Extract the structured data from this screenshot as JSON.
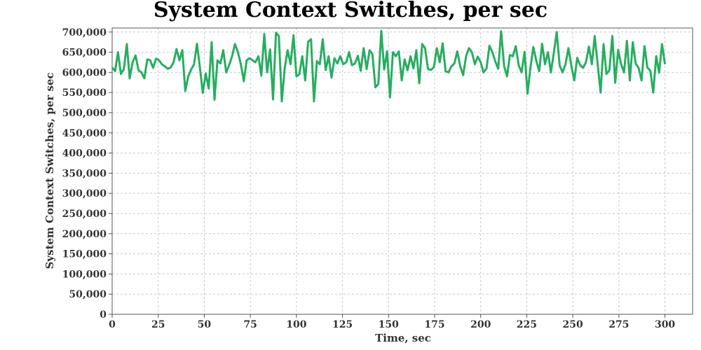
{
  "chart_data": {
    "type": "line",
    "title": "System Context Switches, per sec",
    "xlabel": "Time, sec",
    "ylabel": "System Context Switches, per sec",
    "xlim": [
      0,
      315
    ],
    "ylim": [
      0,
      710000
    ],
    "xticks": [
      0,
      25,
      50,
      75,
      100,
      125,
      150,
      175,
      200,
      225,
      250,
      275,
      300
    ],
    "yticks": [
      0,
      50000,
      100000,
      150000,
      200000,
      250000,
      300000,
      350000,
      400000,
      450000,
      500000,
      550000,
      600000,
      650000,
      700000
    ],
    "xtick_labels": [
      "0",
      "25",
      "50",
      "75",
      "100",
      "125",
      "150",
      "175",
      "200",
      "225",
      "250",
      "275",
      "300"
    ],
    "ytick_labels": [
      "0",
      "50,000",
      "100,000",
      "150,000",
      "200,000",
      "250,000",
      "300,000",
      "350,000",
      "400,000",
      "450,000",
      "500,000",
      "550,000",
      "600,000",
      "650,000",
      "700,000"
    ],
    "grid": true,
    "color": "#27ae60",
    "series": [
      {
        "values": [
          612000,
          603000,
          650000,
          596000,
          608000,
          670000,
          585000,
          625000,
          642000,
          605000,
          600000,
          585000,
          632000,
          630000,
          611000,
          634000,
          630000,
          620000,
          615000,
          609000,
          612000,
          625000,
          658000,
          630000,
          655000,
          554000,
          590000,
          607000,
          620000,
          671000,
          612000,
          549000,
          597000,
          560000,
          675000,
          532000,
          630000,
          622000,
          655000,
          600000,
          618000,
          640000,
          670000,
          650000,
          620000,
          578000,
          630000,
          635000,
          630000,
          625000,
          640000,
          592000,
          695000,
          600000,
          657000,
          533000,
          698000,
          690000,
          528000,
          611000,
          655000,
          620000,
          692000,
          590000,
          595000,
          640000,
          580000,
          676000,
          682000,
          528000,
          628000,
          620000,
          682000,
          606000,
          640000,
          587000,
          635000,
          622000,
          640000,
          620000,
          625000,
          650000,
          618000,
          622000,
          641000,
          604000,
          660000,
          608000,
          655000,
          645000,
          563000,
          571000,
          703000,
          607000,
          652000,
          538000,
          650000,
          640000,
          652000,
          580000,
          632000,
          605000,
          640000,
          610000,
          655000,
          573000,
          670000,
          660000,
          608000,
          606000,
          613000,
          660000,
          625000,
          672000,
          603000,
          600000,
          615000,
          622000,
          652000,
          615000,
          593000,
          640000,
          660000,
          650000,
          620000,
          639000,
          625000,
          600000,
          610000,
          666000,
          650000,
          627000,
          609000,
          702000,
          616000,
          590000,
          643000,
          640000,
          665000,
          617000,
          600000,
          651000,
          547000,
          610000,
          663000,
          629000,
          603000,
          671000,
          620000,
          650000,
          600000,
          648000,
          700000,
          617000,
          600000,
          620000,
          660000,
          616000,
          580000,
          636000,
          618000,
          611000,
          625000,
          664000,
          620000,
          690000,
          620000,
          550000,
          670000,
          596000,
          605000,
          690000,
          574000,
          656000,
          620000,
          600000,
          678000,
          580000,
          675000,
          622000,
          611000,
          580000,
          665000,
          612000,
          604000,
          550000,
          640000,
          599000,
          670000,
          620000
        ]
      }
    ]
  }
}
